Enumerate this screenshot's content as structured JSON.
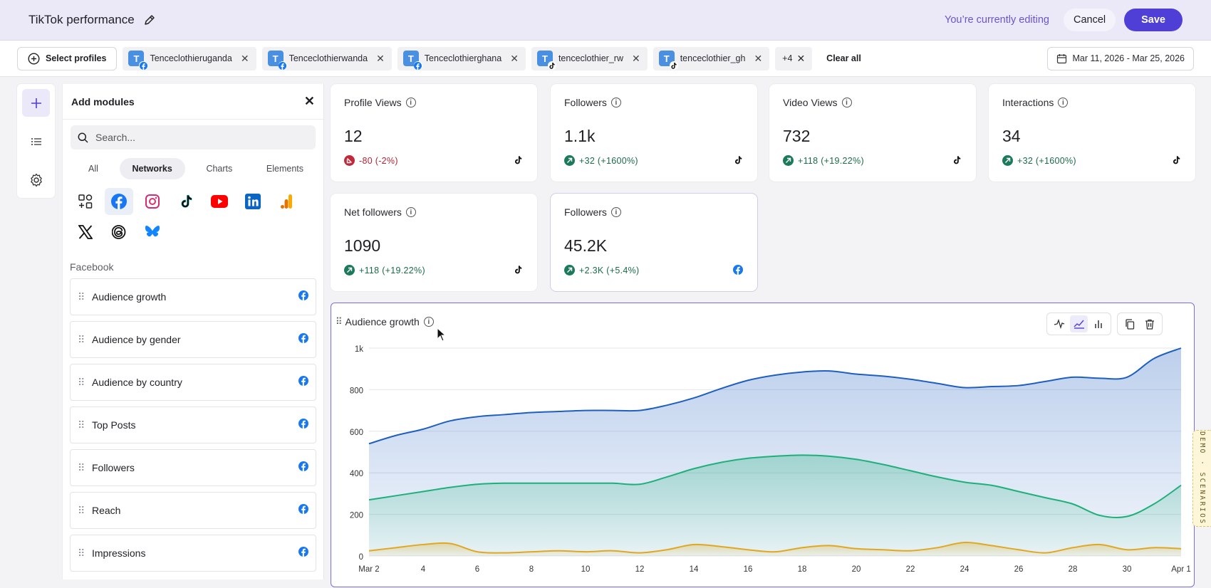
{
  "header": {
    "title": "TikTok performance",
    "editing_text": "You’re currently editing",
    "cancel_label": "Cancel",
    "save_label": "Save"
  },
  "profiles_bar": {
    "select_label": "Select profiles",
    "chips": [
      {
        "initial": "T",
        "name": "Tenceclothieruganda",
        "network": "facebook"
      },
      {
        "initial": "T",
        "name": "Tenceclothierwanda",
        "network": "facebook"
      },
      {
        "initial": "T",
        "name": "Tenceclothierghana",
        "network": "facebook"
      },
      {
        "initial": "T",
        "name": "tenceclothier_rw",
        "network": "tiktok"
      },
      {
        "initial": "T",
        "name": "tenceclothier_gh",
        "network": "tiktok"
      }
    ],
    "more_label": "+4",
    "clear_all_label": "Clear all",
    "date_range": "Mar 11, 2026 - Mar 25, 2026"
  },
  "panel": {
    "title": "Add modules",
    "search_placeholder": "Search...",
    "tabs": [
      "All",
      "Networks",
      "Charts",
      "Elements"
    ],
    "active_tab": "Networks",
    "networks": [
      "widgets-icon",
      "facebook-icon",
      "instagram-icon",
      "tiktok-icon",
      "youtube-icon",
      "linkedin-icon",
      "google-analytics-icon",
      "x-icon",
      "threads-icon",
      "bluesky-icon"
    ],
    "section_label": "Facebook",
    "modules": [
      "Audience growth",
      "Audience by gender",
      "Audience by country",
      "Top Posts",
      "Followers",
      "Reach",
      "Impressions"
    ]
  },
  "metrics": [
    {
      "label": "Profile Views",
      "value": "12",
      "delta": "-80 (-2%)",
      "direction": "down",
      "network": "tiktok"
    },
    {
      "label": "Followers",
      "value": "1.1k",
      "delta": "+32 (+1600%)",
      "direction": "up",
      "network": "tiktok"
    },
    {
      "label": "Video Views",
      "value": "732",
      "delta": "+118 (+19.22%)",
      "direction": "up",
      "network": "tiktok"
    },
    {
      "label": "Interactions",
      "value": "34",
      "delta": "+32 (+1600%)",
      "direction": "up",
      "network": "tiktok"
    },
    {
      "label": "Net followers",
      "value": "1090",
      "delta": "+118 (+19.22%)",
      "direction": "up",
      "network": "tiktok"
    },
    {
      "label": "Followers",
      "value": "45.2K",
      "delta": "+2.3K (+5.4%)",
      "direction": "up",
      "network": "facebook"
    }
  ],
  "chart_title": "Audience growth",
  "demo_label": "DEMO · SCENARIOS",
  "colors": {
    "accent": "#4f3fd6",
    "blue": "#1f5fbf",
    "green": "#1fb07a",
    "yellow": "#e0a820",
    "up": "#1b7a5a",
    "down": "#c0293a"
  },
  "chart_data": {
    "type": "area",
    "x": [
      "Mar 2",
      "3",
      "4",
      "5",
      "6",
      "7",
      "8",
      "9",
      "10",
      "11",
      "12",
      "13",
      "14",
      "15",
      "16",
      "17",
      "18",
      "19",
      "20",
      "21",
      "22",
      "23",
      "24",
      "25",
      "26",
      "27",
      "28",
      "29",
      "30",
      "31",
      "Apr 1"
    ],
    "x_tick_labels": [
      "Mar 2",
      "4",
      "6",
      "8",
      "10",
      "12",
      "14",
      "16",
      "18",
      "20",
      "22",
      "24",
      "26",
      "28",
      "30",
      "Apr 1"
    ],
    "y_ticks": [
      "0",
      "200",
      "400",
      "600",
      "800",
      "1k"
    ],
    "ylim": [
      0,
      1000
    ],
    "grid": true,
    "series": [
      {
        "values": [
          540,
          580,
          610,
          650,
          670,
          680,
          690,
          695,
          700,
          700,
          700,
          725,
          760,
          805,
          845,
          870,
          885,
          890,
          875,
          865,
          850,
          830,
          810,
          815,
          820,
          840,
          860,
          855,
          860,
          950,
          1000
        ]
      },
      {
        "values": [
          270,
          290,
          310,
          330,
          345,
          350,
          350,
          350,
          350,
          350,
          345,
          380,
          420,
          450,
          470,
          480,
          485,
          480,
          465,
          440,
          410,
          380,
          355,
          340,
          310,
          280,
          250,
          195,
          190,
          250,
          340
        ]
      },
      {
        "values": [
          25,
          40,
          55,
          60,
          20,
          15,
          20,
          25,
          20,
          25,
          15,
          30,
          55,
          45,
          30,
          20,
          40,
          50,
          35,
          30,
          25,
          40,
          65,
          50,
          30,
          15,
          40,
          55,
          30,
          40,
          35
        ]
      }
    ]
  }
}
